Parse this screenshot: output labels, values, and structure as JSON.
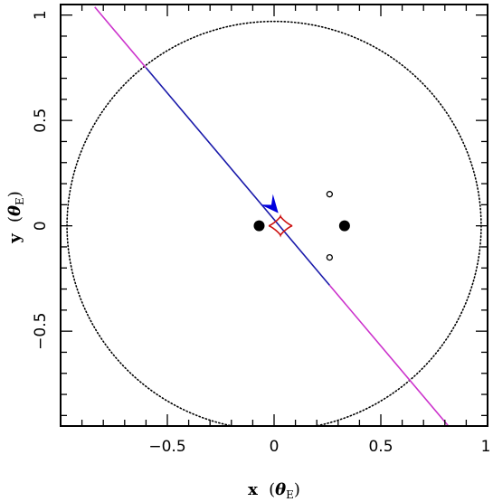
{
  "chart_data": {
    "type": "line",
    "xlabel": "x (θE)",
    "ylabel": "y (θE)",
    "xlabel_parts": {
      "var": "x",
      "open": "(",
      "theta": "θ",
      "sub": "E",
      "close": ")"
    },
    "ylabel_parts": {
      "var": "y",
      "open": "(",
      "theta": "θ",
      "sub": "E",
      "close": ")"
    },
    "xlim": [
      -1.0,
      1.0
    ],
    "ylim": [
      -0.95,
      1.05
    ],
    "x_ticks": [
      -0.5,
      0,
      0.5,
      1
    ],
    "x_tick_labels": [
      "−0.5",
      "0",
      "0.5",
      "1"
    ],
    "y_ticks": [
      -0.5,
      0,
      0.5,
      1
    ],
    "y_tick_labels": [
      "−0.5",
      "0",
      "0.5",
      "1"
    ],
    "x_minor_step": 0.1,
    "y_minor_step": 0.1,
    "grid": false,
    "critical_curve": {
      "style": "dotted",
      "color": "#000000",
      "center": [
        0.0,
        0.0
      ],
      "radius": 0.97
    },
    "trajectory": {
      "slope": -1.2,
      "intercept": 0.03,
      "segments": [
        {
          "name": "",
          "x_range": [
            -0.84,
            -0.6
          ],
          "color": "#cc33cc"
        },
        {
          "name": "",
          "x_range": [
            -0.6,
            0.26
          ],
          "color": "#1a1aaa"
        },
        {
          "name": "",
          "x_range": [
            0.26,
            0.84
          ],
          "color": "#cc33cc"
        }
      ],
      "arrow": {
        "x": 0.02,
        "y": 0.06,
        "color": "#0000dd"
      }
    },
    "caustic": {
      "color": "#cc1111",
      "center": [
        0.03,
        0.0
      ],
      "half_width": 0.055,
      "half_height": 0.045
    },
    "lens_masses": [
      {
        "x": -0.07,
        "y": 0.0,
        "filled": true
      },
      {
        "x": 0.33,
        "y": 0.0,
        "filled": true
      }
    ],
    "images": [
      {
        "x": 0.26,
        "y": 0.15,
        "filled": false
      },
      {
        "x": 0.26,
        "y": -0.15,
        "filled": false
      }
    ]
  }
}
